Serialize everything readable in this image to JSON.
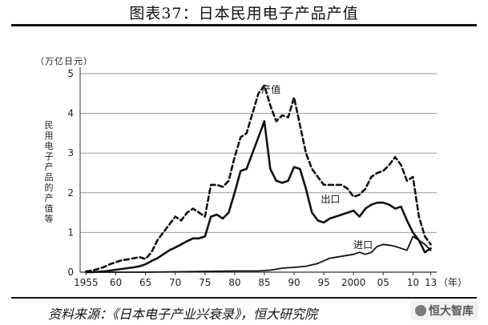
{
  "title": "图表37：日本民用电子产品产值",
  "source": "资料来源：《日本电子产业兴衰录》，恒大研究院",
  "watermark": "恒大智库",
  "watermark_icon": "chat-bubble-icon",
  "chart_data": {
    "type": "line",
    "unit": "（万亿日元）",
    "ylabel": "民用电子产品的产值等",
    "xlabel_suffix": "（年）",
    "xlim": [
      1954,
      2014
    ],
    "ylim": [
      0,
      5
    ],
    "ytick_labels": [
      "0",
      "1",
      "2",
      "3",
      "4",
      "5"
    ],
    "xtick_labels": [
      "1955",
      "60",
      "65",
      "70",
      "75",
      "80",
      "85",
      "90",
      "95",
      "2000",
      "05",
      "10",
      "13"
    ],
    "xtick_values": [
      1955,
      1960,
      1965,
      1970,
      1975,
      1980,
      1985,
      1990,
      1995,
      2000,
      2005,
      2010,
      2013
    ],
    "grid": "horizontal",
    "series": [
      {
        "name": "产值",
        "style": "dashed",
        "color": "#111111",
        "x": [
          1955,
          1956,
          1957,
          1958,
          1959,
          1960,
          1961,
          1962,
          1963,
          1964,
          1965,
          1966,
          1967,
          1968,
          1969,
          1970,
          1971,
          1972,
          1973,
          1974,
          1975,
          1976,
          1977,
          1978,
          1979,
          1980,
          1981,
          1982,
          1983,
          1984,
          1985,
          1986,
          1987,
          1988,
          1989,
          1990,
          1991,
          1992,
          1993,
          1994,
          1995,
          1996,
          1997,
          1998,
          1999,
          2000,
          2001,
          2002,
          2003,
          2004,
          2005,
          2006,
          2007,
          2008,
          2009,
          2010,
          2011,
          2012,
          2013
        ],
        "y": [
          0.02,
          0.04,
          0.08,
          0.13,
          0.2,
          0.25,
          0.3,
          0.32,
          0.35,
          0.38,
          0.33,
          0.5,
          0.8,
          1.0,
          1.2,
          1.4,
          1.3,
          1.5,
          1.6,
          1.5,
          1.4,
          2.2,
          2.2,
          2.15,
          2.3,
          2.9,
          3.4,
          3.5,
          4.0,
          4.5,
          4.7,
          4.2,
          3.8,
          3.95,
          3.9,
          4.4,
          3.7,
          3.0,
          2.6,
          2.4,
          2.2,
          2.2,
          2.2,
          2.2,
          2.1,
          1.9,
          1.95,
          2.1,
          2.4,
          2.5,
          2.55,
          2.7,
          2.9,
          2.7,
          2.3,
          2.4,
          1.4,
          0.9,
          0.7
        ]
      },
      {
        "name": "出口",
        "style": "solid",
        "color": "#111111",
        "x": [
          1955,
          1956,
          1957,
          1958,
          1959,
          1960,
          1961,
          1962,
          1963,
          1964,
          1965,
          1966,
          1967,
          1968,
          1969,
          1970,
          1971,
          1972,
          1973,
          1974,
          1975,
          1976,
          1977,
          1978,
          1979,
          1980,
          1981,
          1982,
          1983,
          1984,
          1985,
          1986,
          1987,
          1988,
          1989,
          1990,
          1991,
          1992,
          1993,
          1994,
          1995,
          1996,
          1997,
          1998,
          1999,
          2000,
          2001,
          2002,
          2003,
          2004,
          2005,
          2006,
          2007,
          2008,
          2009,
          2010,
          2011,
          2012,
          2013
        ],
        "y": [
          0.0,
          0.0,
          0.01,
          0.02,
          0.04,
          0.06,
          0.08,
          0.1,
          0.12,
          0.15,
          0.2,
          0.28,
          0.35,
          0.45,
          0.55,
          0.62,
          0.7,
          0.78,
          0.85,
          0.85,
          0.9,
          1.4,
          1.45,
          1.35,
          1.5,
          2.0,
          2.55,
          2.6,
          3.0,
          3.4,
          3.8,
          2.6,
          2.3,
          2.25,
          2.3,
          2.65,
          2.6,
          2.1,
          1.5,
          1.3,
          1.25,
          1.35,
          1.4,
          1.45,
          1.5,
          1.55,
          1.4,
          1.6,
          1.7,
          1.75,
          1.75,
          1.7,
          1.6,
          1.65,
          1.3,
          1.0,
          0.8,
          0.5,
          0.6
        ]
      },
      {
        "name": "进口",
        "style": "solid",
        "color": "#111111",
        "x": [
          1955,
          1960,
          1965,
          1970,
          1975,
          1980,
          1984,
          1986,
          1988,
          1990,
          1992,
          1994,
          1996,
          1998,
          2000,
          2001,
          2002,
          2003,
          2004,
          2005,
          2006,
          2007,
          2008,
          2009,
          2010,
          2011,
          2012,
          2013
        ],
        "y": [
          0.0,
          0.0,
          0.0,
          0.01,
          0.02,
          0.03,
          0.03,
          0.05,
          0.1,
          0.12,
          0.15,
          0.22,
          0.35,
          0.4,
          0.45,
          0.5,
          0.45,
          0.5,
          0.65,
          0.7,
          0.68,
          0.65,
          0.6,
          0.55,
          0.9,
          0.8,
          0.7,
          0.55
        ]
      }
    ]
  }
}
